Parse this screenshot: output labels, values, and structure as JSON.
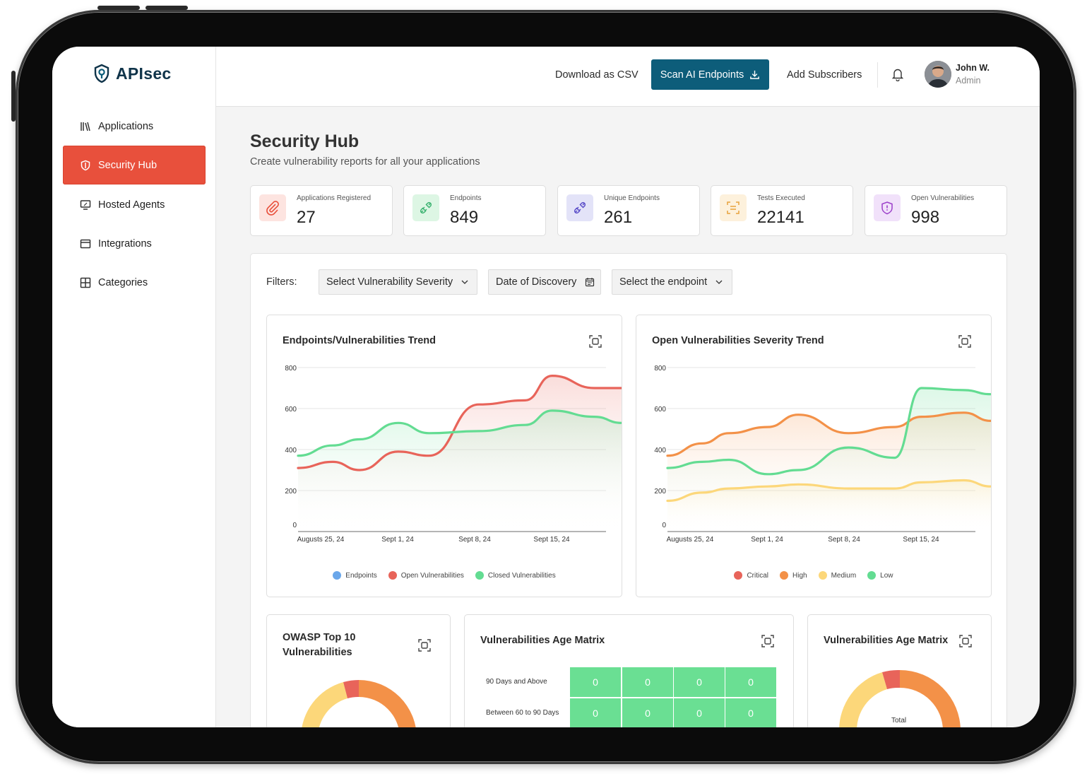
{
  "app": {
    "name": "APIsec"
  },
  "sidebar": {
    "items": [
      {
        "label": "Applications",
        "active": false
      },
      {
        "label": "Security Hub",
        "active": true
      },
      {
        "label": "Hosted Agents",
        "active": false
      },
      {
        "label": "Integrations",
        "active": false
      },
      {
        "label": "Categories",
        "active": false
      }
    ]
  },
  "topbar": {
    "download_label": "Download as CSV",
    "scan_label": "Scan AI Endpoints",
    "subscribers_label": "Add Subscribers",
    "user": {
      "name": "John W.",
      "role": "Admin"
    }
  },
  "page": {
    "title": "Security Hub",
    "subtitle": "Create vulnerability reports for all your applications"
  },
  "stats": [
    {
      "label": "Applications Registered",
      "value": "27",
      "icon": "paperclip-icon",
      "color": "#e8503c"
    },
    {
      "label": "Endpoints",
      "value": "849",
      "icon": "plug-icon",
      "color": "#3cb371"
    },
    {
      "label": "Unique Endpoints",
      "value": "261",
      "icon": "plug-icon",
      "color": "#5b4ec9"
    },
    {
      "label": "Tests Executed",
      "value": "22141",
      "icon": "scan-icon",
      "color": "#e8a23c"
    },
    {
      "label": "Open Vulnerabilities",
      "value": "998",
      "icon": "shield-alert-icon",
      "color": "#9b3ec9"
    }
  ],
  "filters": {
    "label": "Filters:",
    "severity": "Select Vulnerability Severity",
    "date": "Date of Discovery",
    "endpoint": "Select the endpoint"
  },
  "colors": {
    "accent": "#e8503c",
    "primary": "#0d5d7a",
    "critical": "#e8645a",
    "high": "#f39148",
    "medium": "#fcd77a",
    "low": "#63dc92",
    "endpoints": "#6aa7ea"
  },
  "chart_data": [
    {
      "type": "line",
      "title": "Endpoints/Vulnerabilities Trend",
      "x_ticks": [
        "Augusts 25, 24",
        "Sept 1, 24",
        "Sept 8, 24",
        "Sept 15, 24"
      ],
      "y_ticks": [
        "800",
        "600",
        "400",
        "200",
        "0"
      ],
      "ylim": [
        0,
        800
      ],
      "grid": true,
      "legend_position": "bottom",
      "series": [
        {
          "name": "Endpoints",
          "values": []
        },
        {
          "name": "Open Vulnerabilities",
          "x": [
            0,
            0.45,
            0.8,
            1.3,
            1.7,
            2.35,
            2.95,
            3.3,
            3.85,
            4.2
          ],
          "values": [
            310,
            340,
            300,
            390,
            370,
            620,
            640,
            760,
            700,
            700
          ]
        },
        {
          "name": "Closed Vulnerabilities",
          "x": [
            0,
            0.45,
            0.8,
            1.3,
            1.7,
            2.35,
            2.95,
            3.3,
            3.85,
            4.2
          ],
          "values": [
            370,
            420,
            450,
            530,
            480,
            490,
            520,
            590,
            560,
            530
          ]
        }
      ]
    },
    {
      "type": "line",
      "title": "Open Vulnerabilities Severity Trend",
      "x_ticks": [
        "Augusts 25, 24",
        "Sept 1, 24",
        "Sept 8, 24",
        "Sept 15, 24"
      ],
      "y_ticks": [
        "800",
        "600",
        "400",
        "200",
        "0"
      ],
      "ylim": [
        0,
        800
      ],
      "grid": true,
      "legend_position": "bottom",
      "series": [
        {
          "name": "Critical",
          "values": []
        },
        {
          "name": "High",
          "x": [
            0,
            0.45,
            0.8,
            1.3,
            1.7,
            2.35,
            2.95,
            3.3,
            3.85,
            4.2
          ],
          "values": [
            370,
            430,
            480,
            510,
            570,
            480,
            510,
            560,
            580,
            540
          ]
        },
        {
          "name": "Medium",
          "x": [
            0,
            0.45,
            0.8,
            1.3,
            1.7,
            2.35,
            2.95,
            3.3,
            3.85,
            4.2
          ],
          "values": [
            150,
            190,
            210,
            220,
            230,
            210,
            210,
            240,
            250,
            220
          ]
        },
        {
          "name": "Low",
          "x": [
            0,
            0.45,
            0.8,
            1.3,
            1.7,
            2.35,
            2.95,
            3.3,
            3.85,
            4.2
          ],
          "values": [
            310,
            340,
            350,
            280,
            300,
            410,
            360,
            700,
            690,
            670
          ]
        }
      ]
    }
  ],
  "owasp": {
    "title": "OWASP Top 10 Vulnerabilities"
  },
  "age_matrix": {
    "title": "Vulnerabilities Age Matrix",
    "rows": [
      {
        "label": "90 Days and Above",
        "cells": [
          "0",
          "0",
          "0",
          "0"
        ]
      },
      {
        "label": "Between 60 to 90 Days",
        "cells": [
          "0",
          "0",
          "0",
          "0"
        ]
      }
    ]
  },
  "age_donut": {
    "title": "Vulnerabilities Age Matrix",
    "center_label": "Total"
  }
}
